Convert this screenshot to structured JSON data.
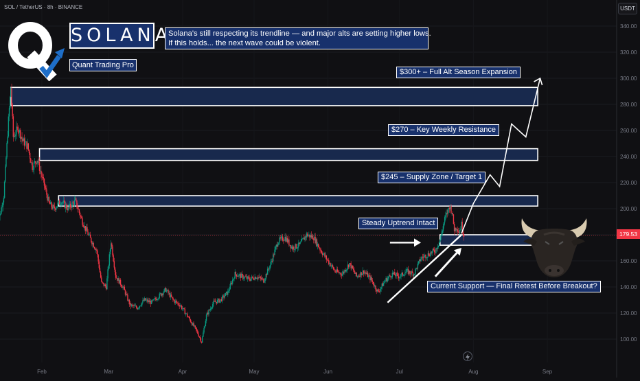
{
  "header": {
    "symbol_line": "SOL / TetherUS · 8h · BINANCE",
    "currency": "USDT"
  },
  "branding": {
    "logo_icon": "q-logo-with-arrow-icon",
    "name": "SOLANA",
    "tagline": "Quant Trading Pro"
  },
  "headline": {
    "line1": "Solana's still respecting its trendline — and major alts are setting higher lows.",
    "line2": "If this holds... the next wave could be violent."
  },
  "notes": {
    "target_300": "$300+ – Full Alt Season Expansion",
    "resistance_270": "$270 – Key Weekly Resistance",
    "supply_245": "$245 – Supply Zone / Target 1",
    "uptrend": "Steady Uptrend Intact",
    "support": "Current Support — Final Retest Before Breakout?"
  },
  "decor": {
    "bull_icon": "bull-icon",
    "flash_icon": "lightning-icon"
  },
  "colors": {
    "background": "#101013",
    "up": "#089981",
    "down": "#f23645",
    "zone_fill": "#18294d",
    "label_fill": "#18316c",
    "outline": "#ffffff",
    "axis_text": "#787b86"
  },
  "chart_data": {
    "type": "candlestick",
    "y_axis": {
      "ticks": [
        {
          "value": 100,
          "label": "100.00"
        },
        {
          "value": 120,
          "label": "120.00"
        },
        {
          "value": 140,
          "label": "140.00"
        },
        {
          "value": 160,
          "label": "160.00"
        },
        {
          "value": 180,
          "label": "180.00"
        },
        {
          "value": 200,
          "label": "200.00"
        },
        {
          "value": 220,
          "label": "220.00"
        },
        {
          "value": 240,
          "label": "240.00"
        },
        {
          "value": 260,
          "label": "260.00"
        },
        {
          "value": 280,
          "label": "280.00"
        },
        {
          "value": 300,
          "label": "300.00"
        },
        {
          "value": 320,
          "label": "320.00"
        },
        {
          "value": 340,
          "label": "340.00"
        }
      ],
      "range": [
        92,
        350
      ],
      "position": "right"
    },
    "x_axis": {
      "ticks": [
        {
          "date": "2025-02-01",
          "label": "Feb"
        },
        {
          "date": "2025-03-01",
          "label": "Mar"
        },
        {
          "date": "2025-04-01",
          "label": "Apr"
        },
        {
          "date": "2025-05-01",
          "label": "May"
        },
        {
          "date": "2025-06-01",
          "label": "Jun"
        },
        {
          "date": "2025-07-01",
          "label": "Jul"
        },
        {
          "date": "2025-08-01",
          "label": "Aug"
        },
        {
          "date": "2025-09-01",
          "label": "Sep"
        }
      ]
    },
    "current_price": {
      "value": 179.53,
      "label": "179.53"
    },
    "price_path": [
      {
        "date": "2025-01-13",
        "price": 182
      },
      {
        "date": "2025-01-16",
        "price": 210
      },
      {
        "date": "2025-01-18",
        "price": 268
      },
      {
        "date": "2025-01-19",
        "price": 293
      },
      {
        "date": "2025-01-20",
        "price": 255
      },
      {
        "date": "2025-01-22",
        "price": 262
      },
      {
        "date": "2025-01-24",
        "price": 252
      },
      {
        "date": "2025-01-26",
        "price": 248
      },
      {
        "date": "2025-01-28",
        "price": 232
      },
      {
        "date": "2025-01-30",
        "price": 238
      },
      {
        "date": "2025-02-02",
        "price": 218
      },
      {
        "date": "2025-02-04",
        "price": 204
      },
      {
        "date": "2025-02-06",
        "price": 200
      },
      {
        "date": "2025-02-09",
        "price": 206
      },
      {
        "date": "2025-02-12",
        "price": 200
      },
      {
        "date": "2025-02-15",
        "price": 206
      },
      {
        "date": "2025-02-18",
        "price": 190
      },
      {
        "date": "2025-02-21",
        "price": 178
      },
      {
        "date": "2025-02-24",
        "price": 168
      },
      {
        "date": "2025-02-26",
        "price": 143
      },
      {
        "date": "2025-02-28",
        "price": 140
      },
      {
        "date": "2025-03-02",
        "price": 175
      },
      {
        "date": "2025-03-04",
        "price": 148
      },
      {
        "date": "2025-03-07",
        "price": 140
      },
      {
        "date": "2025-03-10",
        "price": 126
      },
      {
        "date": "2025-03-13",
        "price": 124
      },
      {
        "date": "2025-03-16",
        "price": 130
      },
      {
        "date": "2025-03-19",
        "price": 128
      },
      {
        "date": "2025-03-22",
        "price": 133
      },
      {
        "date": "2025-03-25",
        "price": 138
      },
      {
        "date": "2025-03-28",
        "price": 130
      },
      {
        "date": "2025-03-31",
        "price": 126
      },
      {
        "date": "2025-04-03",
        "price": 118
      },
      {
        "date": "2025-04-07",
        "price": 106
      },
      {
        "date": "2025-04-09",
        "price": 98
      },
      {
        "date": "2025-04-11",
        "price": 118
      },
      {
        "date": "2025-04-14",
        "price": 128
      },
      {
        "date": "2025-04-17",
        "price": 130
      },
      {
        "date": "2025-04-20",
        "price": 136
      },
      {
        "date": "2025-04-23",
        "price": 150
      },
      {
        "date": "2025-04-26",
        "price": 148
      },
      {
        "date": "2025-04-29",
        "price": 146
      },
      {
        "date": "2025-05-02",
        "price": 148
      },
      {
        "date": "2025-05-05",
        "price": 145
      },
      {
        "date": "2025-05-08",
        "price": 158
      },
      {
        "date": "2025-05-11",
        "price": 175
      },
      {
        "date": "2025-05-14",
        "price": 178
      },
      {
        "date": "2025-05-17",
        "price": 170
      },
      {
        "date": "2025-05-20",
        "price": 172
      },
      {
        "date": "2025-05-23",
        "price": 180
      },
      {
        "date": "2025-05-26",
        "price": 178
      },
      {
        "date": "2025-05-29",
        "price": 168
      },
      {
        "date": "2025-06-01",
        "price": 160
      },
      {
        "date": "2025-06-04",
        "price": 152
      },
      {
        "date": "2025-06-07",
        "price": 150
      },
      {
        "date": "2025-06-10",
        "price": 158
      },
      {
        "date": "2025-06-13",
        "price": 148
      },
      {
        "date": "2025-06-16",
        "price": 152
      },
      {
        "date": "2025-06-19",
        "price": 146
      },
      {
        "date": "2025-06-22",
        "price": 136
      },
      {
        "date": "2025-06-25",
        "price": 145
      },
      {
        "date": "2025-06-28",
        "price": 150
      },
      {
        "date": "2025-07-01",
        "price": 148
      },
      {
        "date": "2025-07-04",
        "price": 152
      },
      {
        "date": "2025-07-07",
        "price": 150
      },
      {
        "date": "2025-07-10",
        "price": 162
      },
      {
        "date": "2025-07-13",
        "price": 165
      },
      {
        "date": "2025-07-16",
        "price": 168
      },
      {
        "date": "2025-07-18",
        "price": 176
      },
      {
        "date": "2025-07-20",
        "price": 192
      },
      {
        "date": "2025-07-22",
        "price": 202
      },
      {
        "date": "2025-07-23",
        "price": 198
      },
      {
        "date": "2025-07-24",
        "price": 184
      },
      {
        "date": "2025-07-25",
        "price": 186
      },
      {
        "date": "2025-07-26",
        "price": 182
      },
      {
        "date": "2025-07-27",
        "price": 188
      },
      {
        "date": "2025-07-28",
        "price": 179.53
      }
    ],
    "zones": [
      {
        "name": "top zone",
        "from_date": "2025-01-19",
        "to_date": "2025-08-28",
        "low": 279,
        "high": 293
      },
      {
        "name": "$270 zone",
        "from_date": "2025-01-31",
        "to_date": "2025-08-28",
        "low": 237,
        "high": 246
      },
      {
        "name": "$245 zone",
        "from_date": "2025-02-08",
        "to_date": "2025-08-28",
        "low": 202,
        "high": 210
      },
      {
        "name": "support zone",
        "from_date": "2025-07-18",
        "to_date": "2025-08-28",
        "low": 172,
        "high": 180
      }
    ],
    "projection_path": [
      {
        "date": "2025-07-27",
        "price": 181
      },
      {
        "date": "2025-08-01",
        "price": 204
      },
      {
        "date": "2025-08-08",
        "price": 226
      },
      {
        "date": "2025-08-12",
        "price": 217
      },
      {
        "date": "2025-08-17",
        "price": 265
      },
      {
        "date": "2025-08-23",
        "price": 255
      },
      {
        "date": "2025-08-29",
        "price": 300
      }
    ],
    "trendline": {
      "from": {
        "date": "2025-06-26",
        "price": 128
      },
      "to": {
        "date": "2025-07-27",
        "price": 180
      }
    },
    "arrows": [
      {
        "name": "uptrend arrow",
        "from": {
          "date": "2025-06-27",
          "price": 174
        },
        "to": {
          "date": "2025-07-10",
          "price": 174
        }
      },
      {
        "name": "support arrow",
        "from": {
          "date": "2025-07-16",
          "price": 148
        },
        "to": {
          "date": "2025-07-27",
          "price": 170
        }
      }
    ]
  }
}
